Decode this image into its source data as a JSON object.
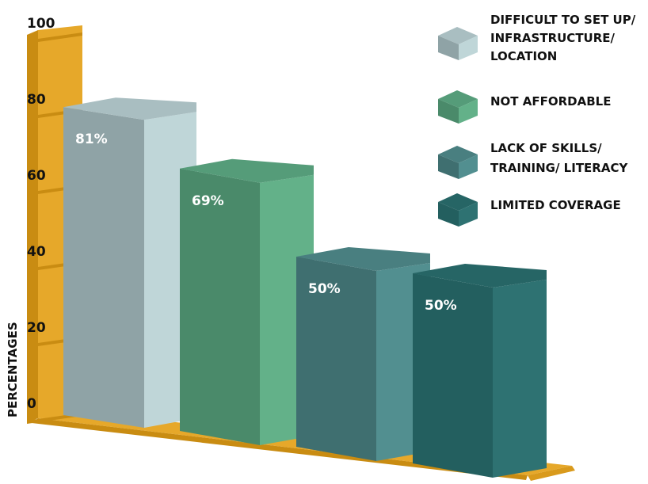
{
  "chart_data": {
    "type": "bar",
    "categories": [
      "DIFFICULT TO SET UP/ INFRASTRUCTURE/ LOCATION",
      "NOT AFFORDABLE",
      "LACK OF SKILLS/ TRAINING/ LITERACY",
      "LIMITED COVERAGE"
    ],
    "values": [
      81,
      69,
      50,
      50
    ],
    "data_labels": [
      "81%",
      "69%",
      "50%",
      "50%"
    ],
    "ylabel": "PERCENTAGES",
    "xlabel": "",
    "ylim": [
      0,
      100
    ],
    "yticks": [
      "0",
      "20",
      "40",
      "60",
      "80",
      "100"
    ],
    "legend_position": "top-right",
    "legend": [
      {
        "lines": [
          "DIFFICULT TO SET UP/",
          "INFRASTRUCTURE/",
          "LOCATION"
        ]
      },
      {
        "lines": [
          "NOT AFFORDABLE"
        ]
      },
      {
        "lines": [
          "LACK OF SKILLS/",
          "TRAINING/ LITERACY"
        ]
      },
      {
        "lines": [
          "LIMITED COVERAGE"
        ]
      }
    ],
    "colors": [
      {
        "front": "#8fa3a6",
        "side": "#bfd6d8",
        "top": "#a9bec1"
      },
      {
        "front": "#4a8a6a",
        "side": "#63b189",
        "top": "#559c79"
      },
      {
        "front": "#3f6f70",
        "side": "#528f90",
        "top": "#497f80"
      },
      {
        "front": "#235f5f",
        "side": "#2e7272",
        "top": "#266565"
      }
    ],
    "axis_color": "#e6a82a",
    "axis_dark": "#c98c12",
    "grid": false,
    "style": "3d"
  }
}
